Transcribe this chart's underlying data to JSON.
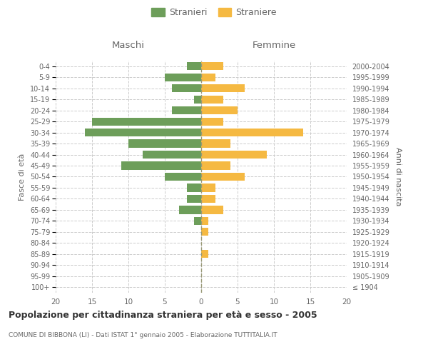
{
  "age_groups": [
    "100+",
    "95-99",
    "90-94",
    "85-89",
    "80-84",
    "75-79",
    "70-74",
    "65-69",
    "60-64",
    "55-59",
    "50-54",
    "45-49",
    "40-44",
    "35-39",
    "30-34",
    "25-29",
    "20-24",
    "15-19",
    "10-14",
    "5-9",
    "0-4"
  ],
  "birth_years": [
    "≤ 1904",
    "1905-1909",
    "1910-1914",
    "1915-1919",
    "1920-1924",
    "1925-1929",
    "1930-1934",
    "1935-1939",
    "1940-1944",
    "1945-1949",
    "1950-1954",
    "1955-1959",
    "1960-1964",
    "1965-1969",
    "1970-1974",
    "1975-1979",
    "1980-1984",
    "1985-1989",
    "1990-1994",
    "1995-1999",
    "2000-2004"
  ],
  "males": [
    0,
    0,
    0,
    0,
    0,
    0,
    1,
    3,
    2,
    2,
    5,
    11,
    8,
    10,
    16,
    15,
    4,
    1,
    4,
    5,
    2
  ],
  "females": [
    0,
    0,
    0,
    1,
    0,
    1,
    1,
    3,
    2,
    2,
    6,
    4,
    9,
    4,
    14,
    3,
    5,
    3,
    6,
    2,
    3
  ],
  "male_color": "#6d9e5a",
  "female_color": "#f5b942",
  "title": "Popolazione per cittadinanza straniera per età e sesso - 2005",
  "subtitle": "COMUNE DI BIBBONA (LI) - Dati ISTAT 1° gennaio 2005 - Elaborazione TUTTITALIA.IT",
  "left_label": "Maschi",
  "right_label": "Femmine",
  "ylabel_left": "Fasce di età",
  "ylabel_right": "Anni di nascita",
  "xlim": 20,
  "legend_stranieri": "Stranieri",
  "legend_straniere": "Straniere",
  "bg_color": "#ffffff",
  "grid_color": "#cccccc",
  "tick_color": "#888888",
  "label_color": "#666666"
}
